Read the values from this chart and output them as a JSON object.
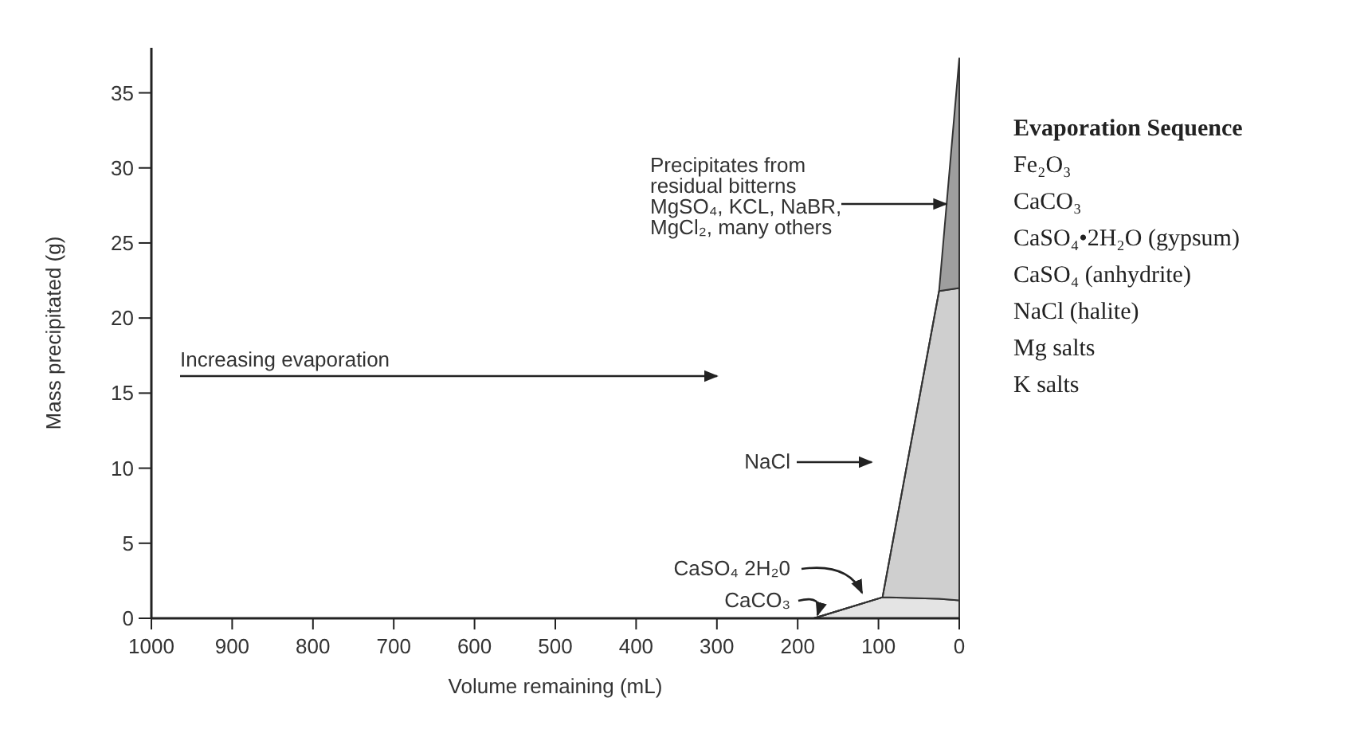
{
  "chart_data": {
    "type": "area",
    "stacked": true,
    "x": [
      180,
      95,
      25,
      0
    ],
    "series": [
      {
        "color": "#e4e4e4",
        "values": [
          0,
          1.4,
          1.3,
          1.2
        ]
      },
      {
        "color": "#cfcfcf",
        "values": [
          0,
          0,
          20.5,
          20.8
        ]
      },
      {
        "color": "#9e9e9e",
        "values": [
          0,
          0,
          0,
          15.3
        ]
      }
    ],
    "xlabel": "Volume remaining (mL)",
    "ylabel": "Mass precipitated (g)",
    "xlim": [
      1000,
      0
    ],
    "xticks": [
      1000,
      900,
      800,
      700,
      600,
      500,
      400,
      300,
      200,
      100,
      0
    ],
    "ylim": [
      0,
      38
    ],
    "yticks": [
      0,
      5,
      10,
      15,
      20,
      25,
      30,
      35
    ],
    "grid": false,
    "annotations": [
      {
        "text": "Precipitates from\nresidual bitterns\nMgSO₄, KCL, NaBR,\nMgCl₂, many others",
        "x": 16,
        "y": 27.6
      },
      "Increasing evaporation",
      "NaCl",
      "CaSO₄ 2H₂0",
      "CaCO₃",
      "Evaporation Sequence",
      "Fe₂O₃",
      "CaCO₃",
      "CaSO₄•2H₂O (gypsum)",
      "CaSO₄ (anhydrite)",
      "NaCl (halite)",
      "Mg salts",
      "K salts"
    ]
  }
}
